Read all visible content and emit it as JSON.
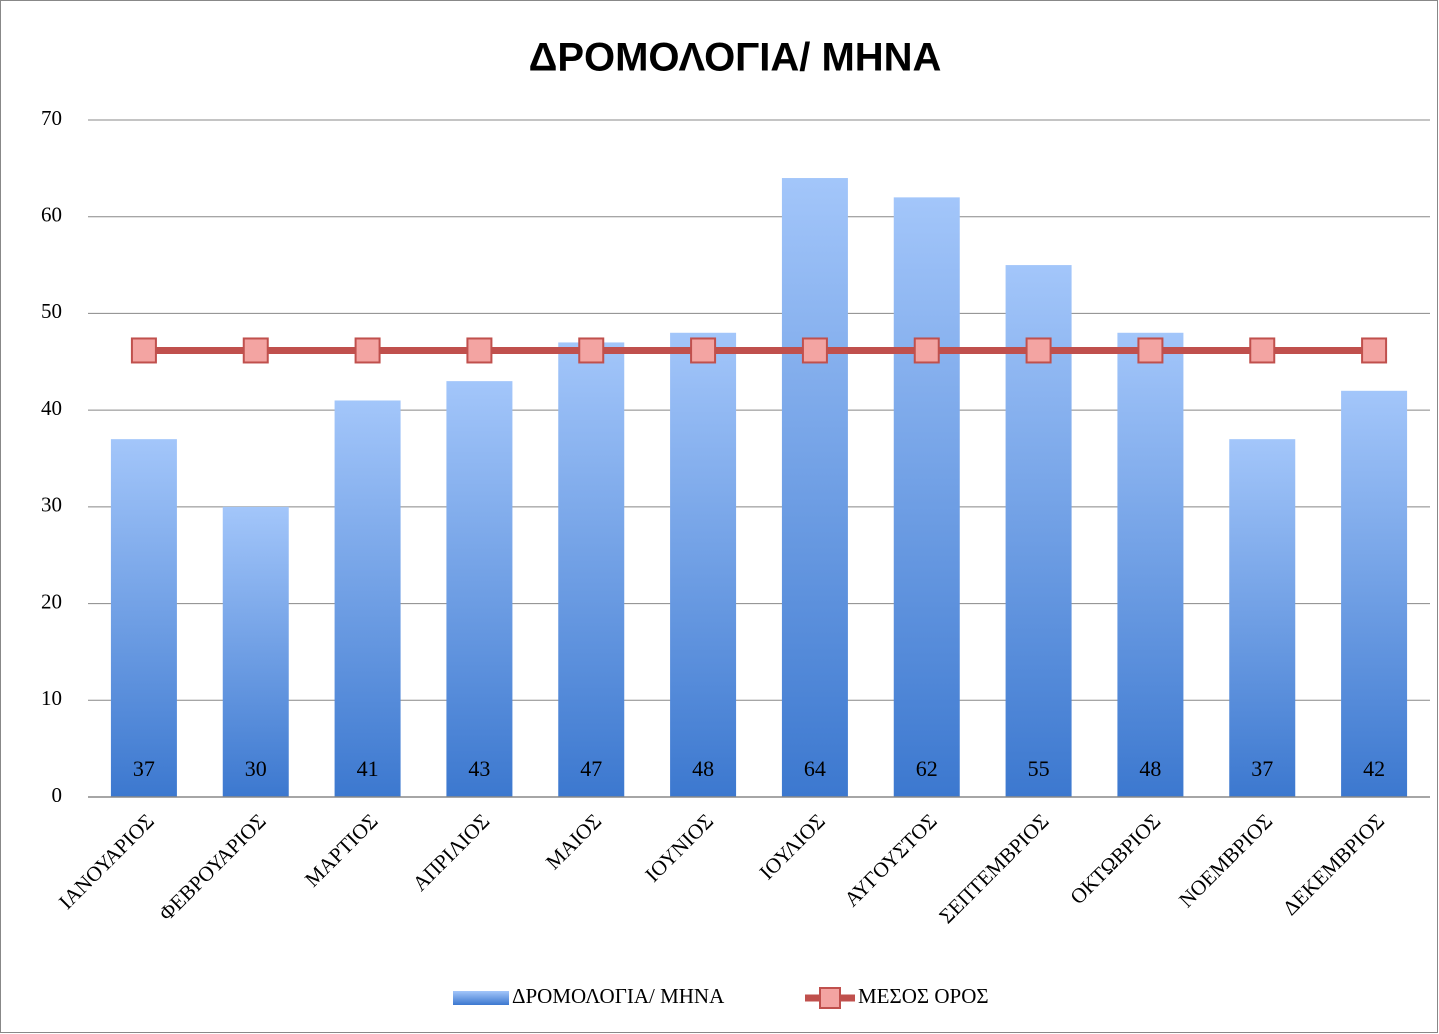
{
  "chart_data": {
    "type": "bar",
    "title": "ΔΡΟΜΟΛΟΓΙΑ/ ΜΗΝΑ",
    "categories": [
      "ΙΑΝΟΥΑΡΙΟΣ",
      "ΦΕΒΡΟΥΑΡΙΟΣ",
      "ΜΑΡΤΙΟΣ",
      "ΑΠΡΙΛΙΟΣ",
      "ΜΑΙΟΣ",
      "ΙΟΥΝΙΟΣ",
      "ΙΟΥΛΙΟΣ",
      "ΑΥΓΟΥΣΤΟΣ",
      "ΣΕΠΤΕΜΒΡΙΟΣ",
      "ΟΚΤΩΒΡΙΟΣ",
      "ΝΟΕΜΒΡΙΟΣ",
      "ΔΕΚΕΜΒΡΙΟΣ"
    ],
    "series": [
      {
        "name": "ΔΡΟΜΟΛΟΓΙΑ/ ΜΗΝΑ",
        "type": "bar",
        "color": "#4f86d6",
        "values": [
          37,
          30,
          41,
          43,
          47,
          48,
          64,
          62,
          55,
          48,
          37,
          42
        ]
      },
      {
        "name": "ΜΕΣΟΣ ΟΡΟΣ",
        "type": "line",
        "color": "#c0504d",
        "values": [
          46.17,
          46.17,
          46.17,
          46.17,
          46.17,
          46.17,
          46.17,
          46.17,
          46.17,
          46.17,
          46.17,
          46.17
        ]
      }
    ],
    "ylim": [
      0,
      70
    ],
    "yticks": [
      0,
      10,
      20,
      30,
      40,
      50,
      60,
      70
    ],
    "grid": true,
    "legend": "bottom"
  }
}
